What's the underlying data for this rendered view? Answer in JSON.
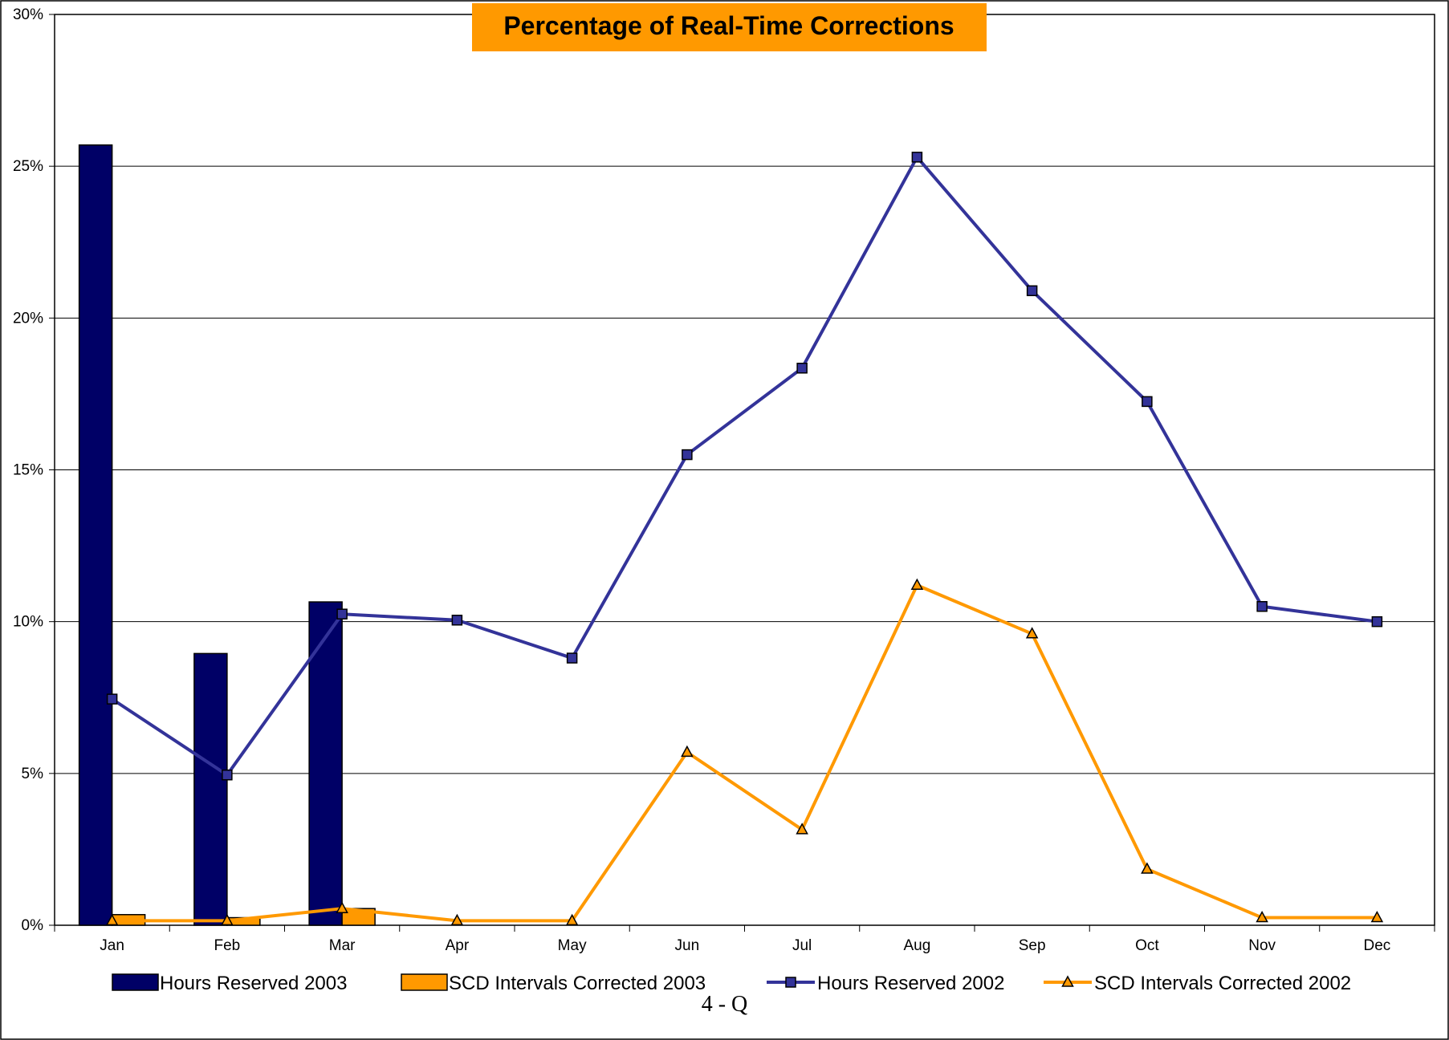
{
  "chart_data": {
    "type": "bar",
    "title": "Percentage of Real-Time Corrections",
    "categories": [
      "Jan",
      "Feb",
      "Mar",
      "Apr",
      "May",
      "Jun",
      "Jul",
      "Aug",
      "Sep",
      "Oct",
      "Nov",
      "Dec"
    ],
    "ylim": [
      0,
      30
    ],
    "yticks": [
      "0%",
      "5%",
      "10%",
      "15%",
      "20%",
      "25%",
      "30%"
    ],
    "grid": true,
    "legend_position": "bottom",
    "series": [
      {
        "name": "Hours Reserved 2003",
        "kind": "bar",
        "color": "#000066",
        "values": [
          25.7,
          8.95,
          10.65,
          null,
          null,
          null,
          null,
          null,
          null,
          null,
          null,
          null
        ]
      },
      {
        "name": "SCD Intervals Corrected 2003",
        "kind": "bar",
        "color": "#FF9900",
        "values": [
          0.35,
          0.25,
          0.55,
          null,
          null,
          null,
          null,
          null,
          null,
          null,
          null,
          null
        ]
      },
      {
        "name": "Hours Reserved 2002",
        "kind": "line",
        "marker": "square",
        "color": "#333399",
        "values": [
          7.45,
          4.95,
          10.25,
          10.05,
          8.8,
          15.5,
          18.35,
          25.3,
          20.9,
          17.25,
          10.5,
          10.0
        ]
      },
      {
        "name": "SCD Intervals Corrected 2002",
        "kind": "line",
        "marker": "triangle",
        "color": "#FF9900",
        "values": [
          0.15,
          0.15,
          0.55,
          0.15,
          0.15,
          5.7,
          3.15,
          11.2,
          9.6,
          1.85,
          0.25,
          0.25
        ]
      }
    ]
  },
  "footer": {
    "page_label": "4 - Q"
  },
  "colors": {
    "title_bg": "#FF9900",
    "grid": "#000000",
    "background": "#FFFFFF"
  }
}
